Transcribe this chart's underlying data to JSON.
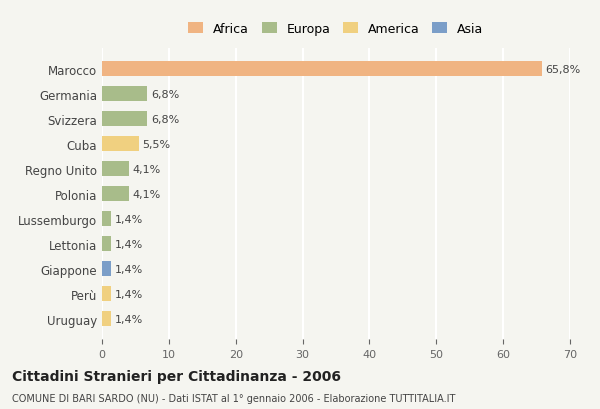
{
  "categories": [
    "Marocco",
    "Germania",
    "Svizzera",
    "Cuba",
    "Regno Unito",
    "Polonia",
    "Lussemburgo",
    "Lettonia",
    "Giappone",
    "Perù",
    "Uruguay"
  ],
  "values": [
    65.8,
    6.8,
    6.8,
    5.5,
    4.1,
    4.1,
    1.4,
    1.4,
    1.4,
    1.4,
    1.4
  ],
  "labels": [
    "65,8%",
    "6,8%",
    "6,8%",
    "5,5%",
    "4,1%",
    "4,1%",
    "1,4%",
    "1,4%",
    "1,4%",
    "1,4%",
    "1,4%"
  ],
  "colors": [
    "#F0B482",
    "#A8BC8A",
    "#A8BC8A",
    "#F0D080",
    "#A8BC8A",
    "#A8BC8A",
    "#A8BC8A",
    "#A8BC8A",
    "#7B9EC8",
    "#F0D080",
    "#F0D080"
  ],
  "legend_labels": [
    "Africa",
    "Europa",
    "America",
    "Asia"
  ],
  "legend_colors": [
    "#F0B482",
    "#A8BC8A",
    "#F0D080",
    "#7B9EC8"
  ],
  "xlim": [
    0,
    70
  ],
  "xticks": [
    0,
    10,
    20,
    30,
    40,
    50,
    60,
    70
  ],
  "title": "Cittadini Stranieri per Cittadinanza - 2006",
  "subtitle": "COMUNE DI BARI SARDO (NU) - Dati ISTAT al 1° gennaio 2006 - Elaborazione TUTTITALIA.IT",
  "bg_color": "#F5F5F0",
  "grid_color": "#FFFFFF",
  "bar_height": 0.6
}
